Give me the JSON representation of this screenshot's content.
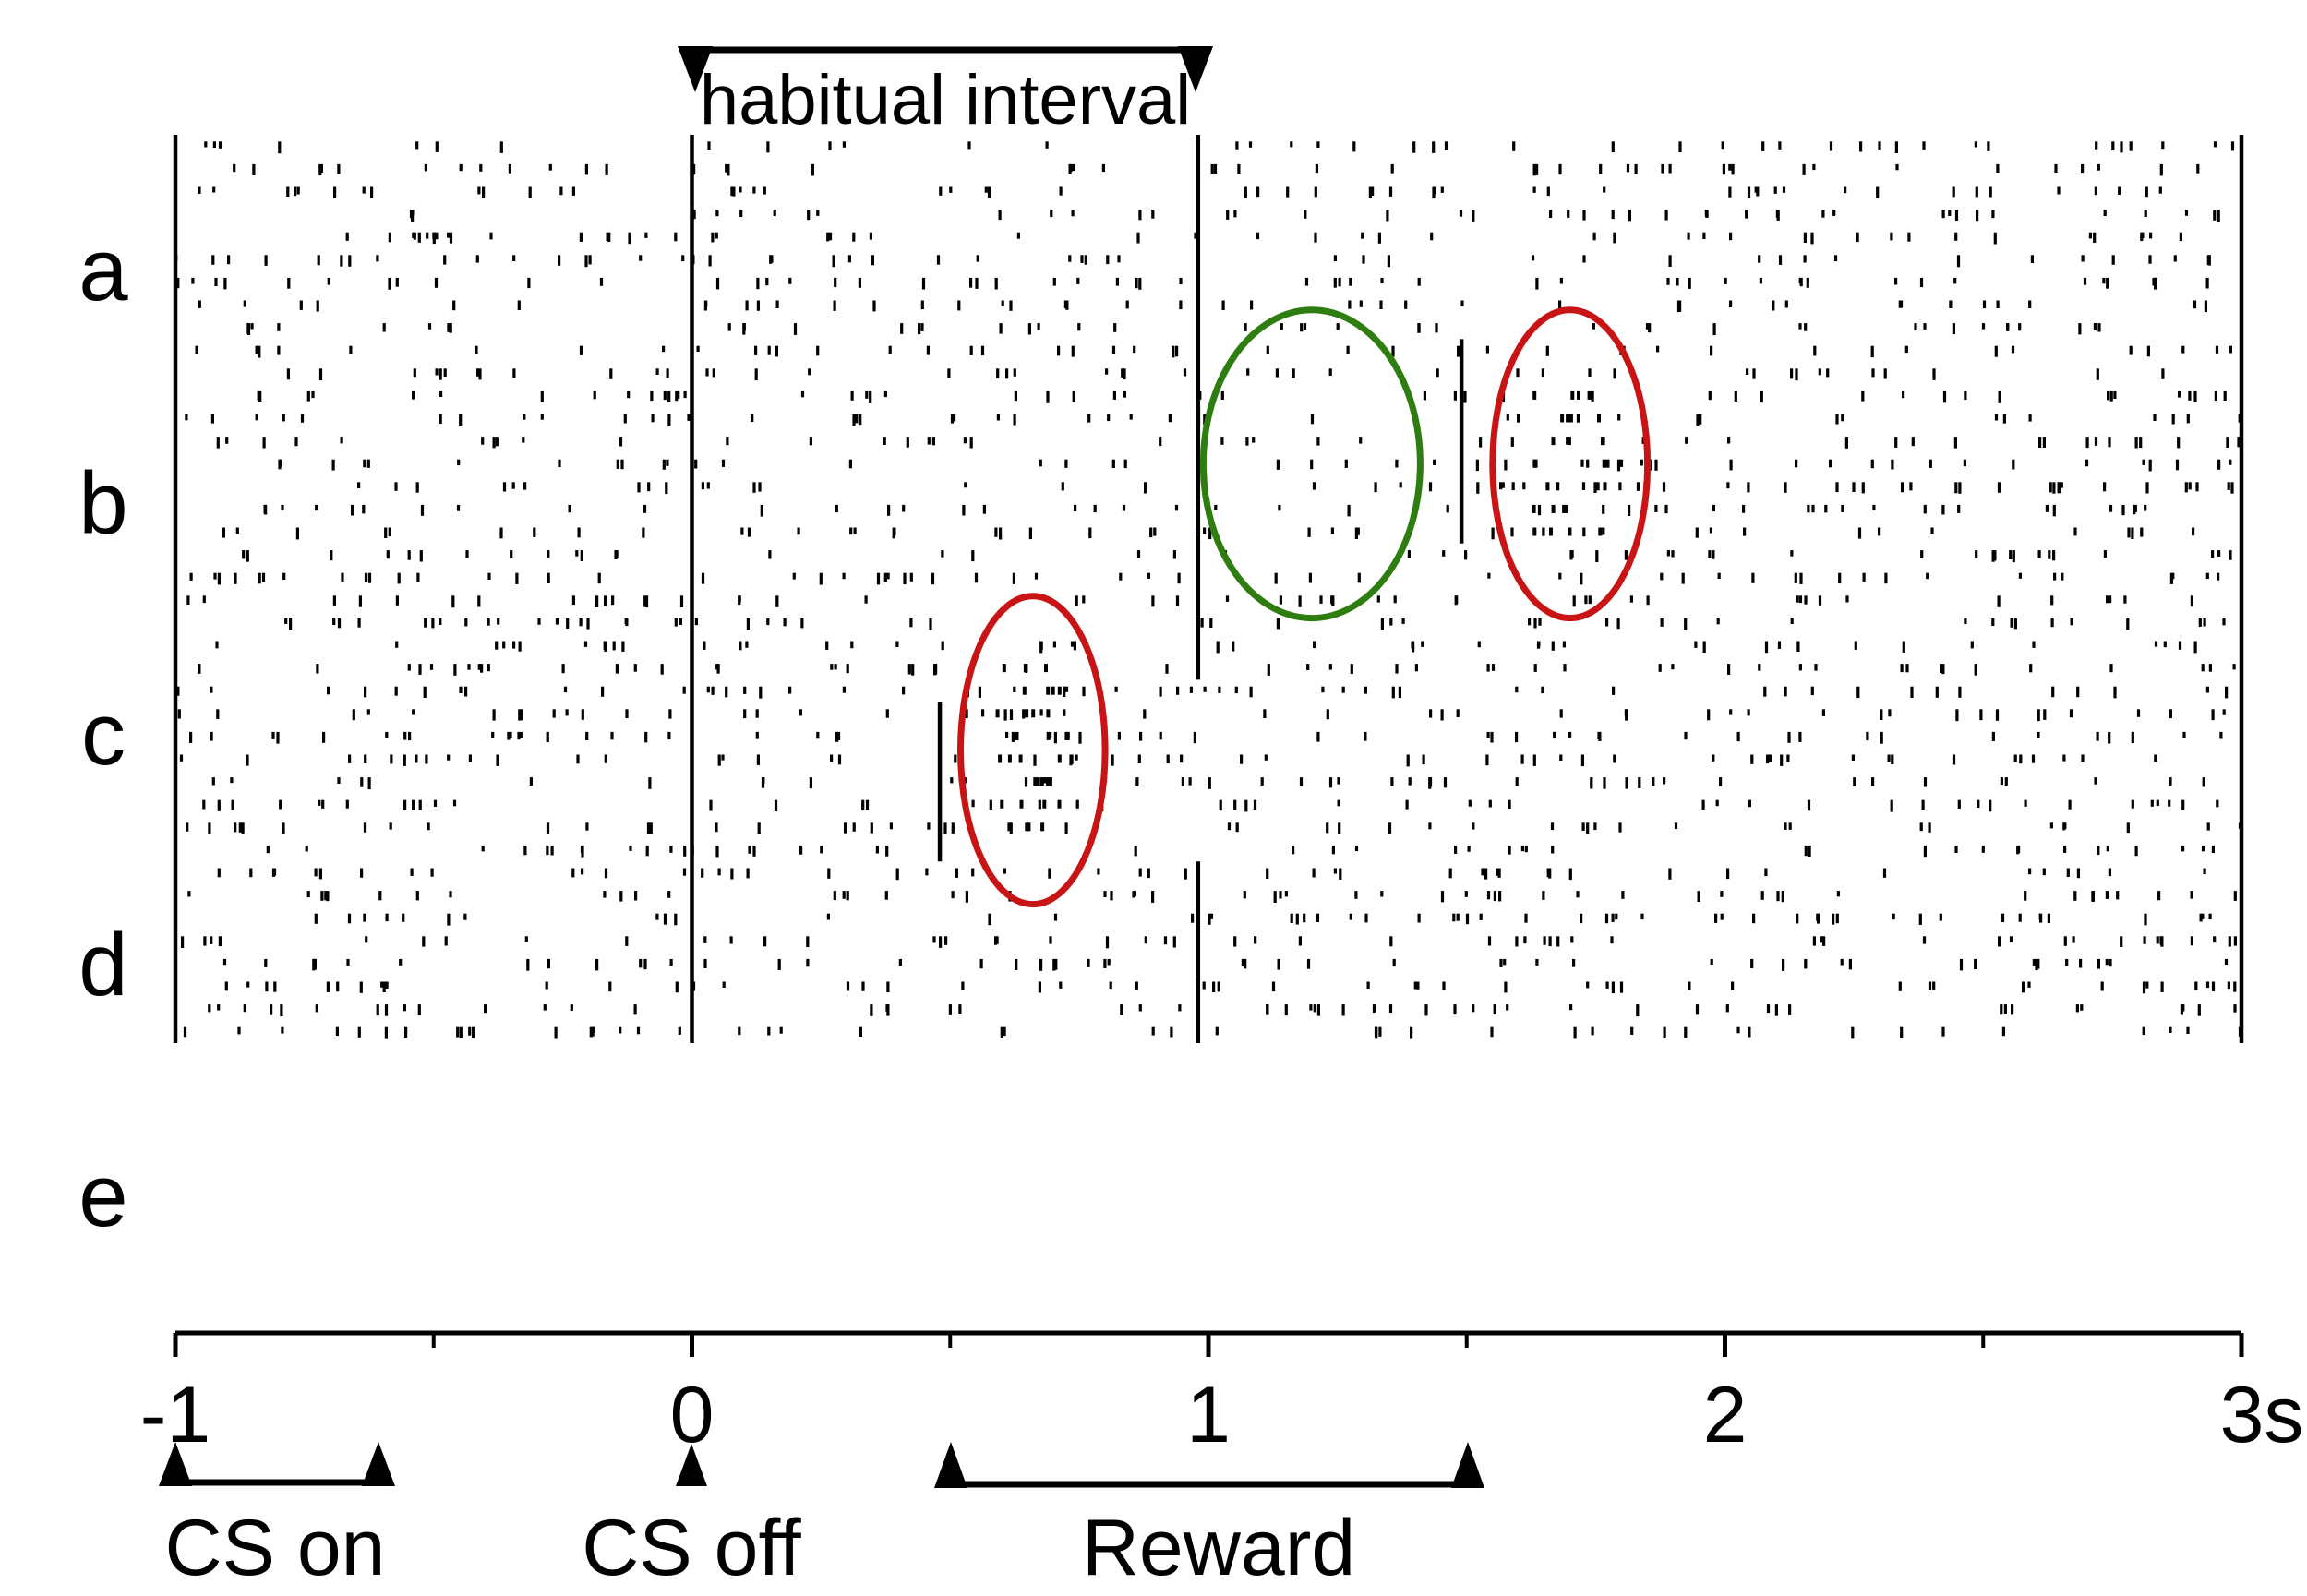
{
  "chart_data": {
    "type": "scatter",
    "subtype": "spike-raster",
    "title": "",
    "xlabel": "",
    "ylabel": "",
    "x_unit": "s",
    "xlim": [
      -1,
      3
    ],
    "x_ticks_major": [
      -1,
      0,
      1,
      2,
      3
    ],
    "x_tick_labels": [
      "-1",
      "0",
      "1",
      "2",
      "3s"
    ],
    "x_ticks_minor": [
      -0.5,
      0.5,
      1.5,
      2.5
    ],
    "trial_count": 40,
    "row_groups": [
      {
        "label": "a",
        "trials": [
          1,
          8
        ]
      },
      {
        "label": "b",
        "trials": [
          9,
          16
        ]
      },
      {
        "label": "c",
        "trials": [
          17,
          24
        ]
      },
      {
        "label": "d",
        "trials": [
          25,
          32
        ]
      },
      {
        "label": "e",
        "trials": [
          33,
          40
        ]
      }
    ],
    "event_lines": [
      {
        "t": -1.0,
        "trials": [
          1,
          40
        ]
      },
      {
        "t": 0.0,
        "trials": [
          1,
          40
        ]
      },
      {
        "t": 0.98,
        "trials": [
          1,
          13
        ]
      },
      {
        "t": 0.98,
        "trials": [
          13,
          24
        ]
      },
      {
        "t": 0.98,
        "trials": [
          33,
          40
        ]
      },
      {
        "t": 1.49,
        "trials": [
          10,
          18
        ]
      },
      {
        "t": 0.48,
        "trials": [
          26,
          32
        ]
      },
      {
        "t": 3.0,
        "trials": [
          1,
          40
        ]
      }
    ],
    "spike_density_hz": 12,
    "annotations": {
      "top_bracket": {
        "label": "habitual interval",
        "t_start": 0,
        "t_end": 1
      },
      "bottom_events": [
        {
          "label": "CS on",
          "t_start": -1,
          "t_end": -0.6
        },
        {
          "label": "CS off",
          "t": 0
        },
        {
          "label": "Reward",
          "t_start": 0.5,
          "t_end": 1.5
        }
      ],
      "ellipses": [
        {
          "color": "#2e7d10",
          "t_center": 1.2,
          "trial_center": 15.0,
          "t_radius": 0.21,
          "trial_radius": 5.3
        },
        {
          "color": "#c81414",
          "t_center": 1.7,
          "trial_center": 15.0,
          "t_radius": 0.15,
          "trial_radius": 5.3
        },
        {
          "color": "#c81414",
          "t_center": 0.66,
          "trial_center": 27.6,
          "t_radius": 0.14,
          "trial_radius": 5.3
        }
      ]
    }
  }
}
